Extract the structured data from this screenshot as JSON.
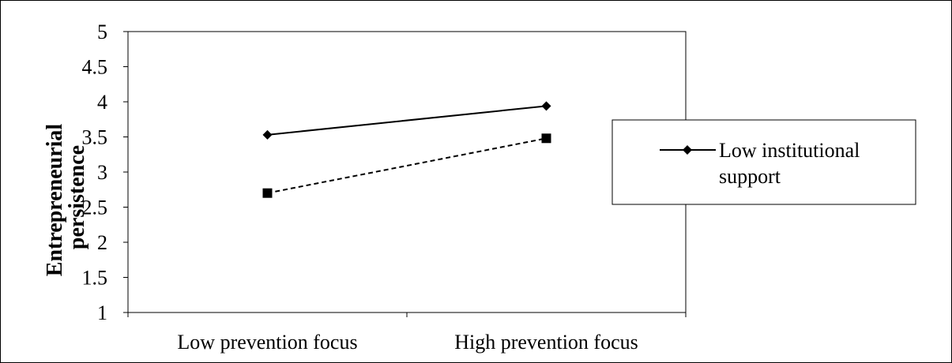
{
  "chart_data": {
    "type": "line",
    "categories": [
      "Low prevention focus",
      "High prevention focus"
    ],
    "series": [
      {
        "name": "Low institutional support",
        "values": [
          3.53,
          3.94
        ],
        "line_style": "solid",
        "marker": "diamond",
        "color": "#000000"
      },
      {
        "values": [
          2.7,
          3.48
        ],
        "line_style": "dashed",
        "marker": "square",
        "color": "#000000"
      }
    ],
    "title": "",
    "xlabel": "",
    "ylabel": "Entrepreneurial persistence",
    "ylim": [
      1,
      5
    ],
    "yticks": [
      "1",
      "1.5",
      "2",
      "2.5",
      "3",
      "3.5",
      "4",
      "4.5",
      "5"
    ],
    "grid": false,
    "legend_position": "right"
  }
}
